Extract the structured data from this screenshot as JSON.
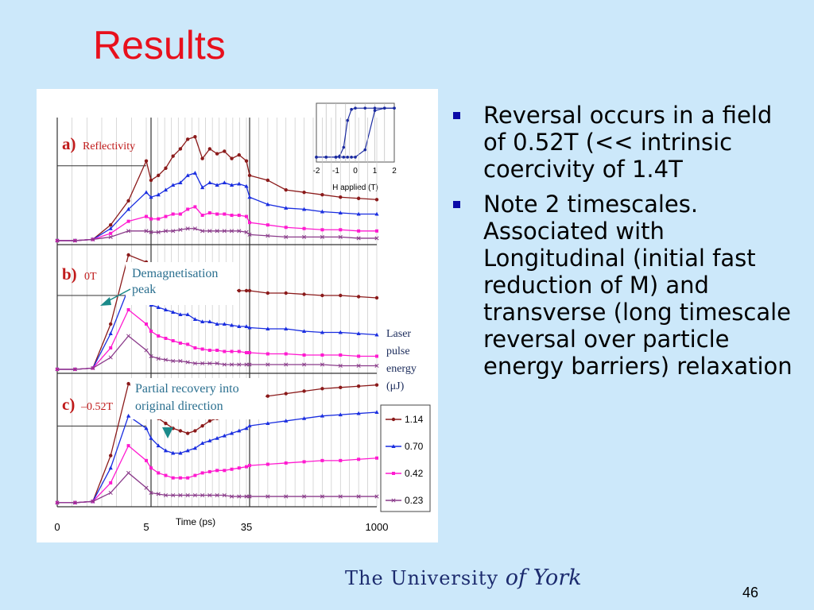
{
  "slide": {
    "title": "Results",
    "page_number": "46",
    "footer_logo": {
      "the": "The",
      "university": "University",
      "of_york": "of York"
    }
  },
  "bullets": [
    "Reversal occurs in a field of 0.52T (<< intrinsic coercivity of 1.4T",
    "Note 2 timescales. Associated with Longitudinal (initial fast reduction of M) and transverse (long timescale reversal over particle energy barriers) relaxation"
  ],
  "colors": {
    "background": "#cce8fa",
    "title": "#e8101c",
    "bullet": "#0a0aa8",
    "logo": "#1c2b6e"
  },
  "figure": {
    "panel_a_letter": "a)",
    "panel_a_label": "Reflectivity",
    "panel_b_letter": "b)",
    "panel_b_label": "0T",
    "panel_c_letter": "c)",
    "panel_c_label": "–0.52T",
    "annotation_demag_1": "Demagnetisation",
    "annotation_demag_2": "peak",
    "annotation_partial_1": "Partial recovery into",
    "annotation_partial_2": "original direction",
    "legend_title_1": "Laser",
    "legend_title_2": "pulse",
    "legend_title_3": "energy",
    "legend_title_4": "(μJ)"
  },
  "chart_data": [
    {
      "type": "line",
      "x": [
        -2,
        -1.5,
        -1,
        -0.8,
        -0.6,
        -0.4,
        -0.2,
        0,
        0.5,
        1,
        1.5,
        2
      ],
      "series": [
        {
          "values": [
            -1,
            -1,
            -1,
            -0.95,
            -0.6,
            0.5,
            0.95,
            1,
            1,
            1,
            1,
            1
          ]
        },
        {
          "values": [
            -1,
            -1,
            -1,
            -1,
            -1,
            -1,
            -1,
            -1,
            -0.7,
            0.9,
            1,
            1
          ]
        }
      ],
      "xlabel": "H applied (T)",
      "xticks": [
        "-2",
        "-1",
        "0",
        "1",
        "2"
      ],
      "xlim": [
        -2,
        2
      ],
      "ylim": [
        -1.2,
        1.2
      ],
      "grid": true
    },
    {
      "type": "line",
      "xlabel": "Time (ps)",
      "xticks": [
        "0",
        "5",
        "35",
        "1000"
      ],
      "segments": [
        [
          0,
          5
        ],
        [
          5,
          35
        ],
        [
          35,
          1000
        ]
      ],
      "ylim": [
        0,
        1
      ],
      "grid": true,
      "legend": "bottom-right",
      "series_names": [
        "1.14",
        "0.70",
        "0.42",
        "0.23"
      ],
      "series_colors": [
        "#8b1a1a",
        "#1a2ee0",
        "#ff1ad0",
        "#8a3a8a"
      ],
      "series_markers": [
        "circle",
        "triangle",
        "square",
        "cross"
      ],
      "panels": [
        {
          "panel": "a",
          "series": [
            {
              "name": "1.14",
              "values": [
                0.02,
                0.02,
                0.03,
                0.15,
                0.35,
                0.68,
                0.52,
                0.56,
                0.62,
                0.72,
                0.78,
                0.86,
                0.88,
                0.7,
                0.78,
                0.74,
                0.76,
                0.7,
                0.73,
                0.68,
                0.56,
                0.52,
                0.44,
                0.42,
                0.4,
                0.38,
                0.37,
                0.36
              ]
            },
            {
              "name": "0.70",
              "values": [
                0.02,
                0.02,
                0.03,
                0.12,
                0.28,
                0.42,
                0.38,
                0.4,
                0.44,
                0.48,
                0.5,
                0.56,
                0.58,
                0.46,
                0.5,
                0.48,
                0.5,
                0.48,
                0.49,
                0.47,
                0.38,
                0.32,
                0.29,
                0.28,
                0.26,
                0.25,
                0.24,
                0.24
              ]
            },
            {
              "name": "0.42",
              "values": [
                0.02,
                0.02,
                0.03,
                0.08,
                0.18,
                0.22,
                0.2,
                0.2,
                0.22,
                0.24,
                0.24,
                0.28,
                0.3,
                0.23,
                0.25,
                0.24,
                0.24,
                0.23,
                0.23,
                0.22,
                0.17,
                0.15,
                0.13,
                0.12,
                0.11,
                0.11,
                0.1,
                0.1
              ]
            },
            {
              "name": "0.23",
              "values": [
                0.02,
                0.02,
                0.03,
                0.05,
                0.1,
                0.1,
                0.09,
                0.09,
                0.1,
                0.1,
                0.11,
                0.12,
                0.12,
                0.1,
                0.1,
                0.1,
                0.1,
                0.1,
                0.1,
                0.09,
                0.07,
                0.06,
                0.05,
                0.05,
                0.05,
                0.05,
                0.04,
                0.04
              ]
            }
          ]
        },
        {
          "panel": "b",
          "series": [
            {
              "name": "1.14",
              "values": [
                0.02,
                0.02,
                0.03,
                0.4,
                0.98,
                0.92,
                0.88,
                0.86,
                0.84,
                0.82,
                0.8,
                0.8,
                0.74,
                0.72,
                0.72,
                0.7,
                0.7,
                0.69,
                0.68,
                0.68,
                0.68,
                0.66,
                0.66,
                0.65,
                0.64,
                0.64,
                0.63,
                0.62
              ]
            },
            {
              "name": "0.70",
              "values": [
                0.02,
                0.02,
                0.03,
                0.32,
                0.7,
                0.62,
                0.56,
                0.54,
                0.52,
                0.5,
                0.48,
                0.48,
                0.44,
                0.42,
                0.42,
                0.4,
                0.4,
                0.39,
                0.38,
                0.38,
                0.37,
                0.36,
                0.36,
                0.34,
                0.33,
                0.33,
                0.32,
                0.31
              ]
            },
            {
              "name": "0.42",
              "values": [
                0.02,
                0.02,
                0.03,
                0.2,
                0.52,
                0.4,
                0.34,
                0.3,
                0.28,
                0.26,
                0.24,
                0.23,
                0.2,
                0.19,
                0.18,
                0.18,
                0.17,
                0.17,
                0.17,
                0.16,
                0.16,
                0.15,
                0.15,
                0.14,
                0.14,
                0.14,
                0.13,
                0.13
              ]
            },
            {
              "name": "0.23",
              "values": [
                0.02,
                0.02,
                0.03,
                0.12,
                0.3,
                0.18,
                0.13,
                0.11,
                0.1,
                0.09,
                0.09,
                0.08,
                0.07,
                0.07,
                0.07,
                0.07,
                0.06,
                0.06,
                0.06,
                0.06,
                0.06,
                0.06,
                0.06,
                0.06,
                0.06,
                0.05,
                0.05,
                0.05
              ]
            }
          ]
        },
        {
          "panel": "c",
          "series": [
            {
              "name": "1.14",
              "values": [
                0.02,
                0.02,
                0.03,
                0.4,
                0.98,
                0.86,
                0.78,
                0.7,
                0.66,
                0.62,
                0.6,
                0.58,
                0.6,
                0.64,
                0.68,
                0.7,
                0.72,
                0.74,
                0.78,
                0.82,
                0.86,
                0.88,
                0.9,
                0.92,
                0.94,
                0.95,
                0.96,
                0.97
              ]
            },
            {
              "name": "0.70",
              "values": [
                0.02,
                0.02,
                0.03,
                0.3,
                0.72,
                0.62,
                0.54,
                0.48,
                0.44,
                0.42,
                0.42,
                0.44,
                0.46,
                0.5,
                0.52,
                0.54,
                0.56,
                0.58,
                0.6,
                0.62,
                0.64,
                0.66,
                0.68,
                0.7,
                0.72,
                0.73,
                0.74,
                0.75
              ]
            },
            {
              "name": "0.42",
              "values": [
                0.02,
                0.02,
                0.03,
                0.18,
                0.48,
                0.36,
                0.3,
                0.26,
                0.24,
                0.22,
                0.22,
                0.22,
                0.24,
                0.26,
                0.27,
                0.28,
                0.28,
                0.29,
                0.3,
                0.31,
                0.32,
                0.33,
                0.34,
                0.35,
                0.36,
                0.36,
                0.37,
                0.38
              ]
            },
            {
              "name": "0.23",
              "values": [
                0.02,
                0.02,
                0.03,
                0.1,
                0.26,
                0.14,
                0.1,
                0.09,
                0.08,
                0.08,
                0.08,
                0.08,
                0.08,
                0.08,
                0.08,
                0.08,
                0.08,
                0.07,
                0.07,
                0.07,
                0.07,
                0.07,
                0.07,
                0.07,
                0.07,
                0.07,
                0.07,
                0.07
              ]
            }
          ]
        }
      ]
    }
  ]
}
